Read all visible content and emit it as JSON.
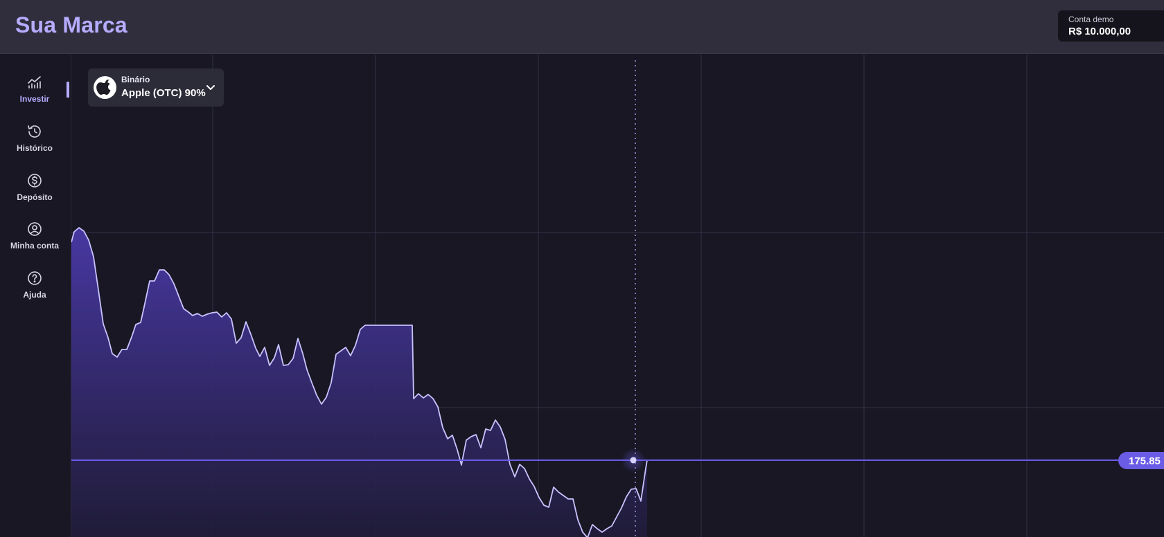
{
  "header": {
    "brand": "Sua Marca",
    "account": {
      "label": "Conta demo",
      "balance": "R$ 10.000,00"
    }
  },
  "sidebar": {
    "items": [
      {
        "label": "Investir",
        "icon": "chart-line-icon",
        "active": true
      },
      {
        "label": "Histórico",
        "icon": "history-icon",
        "active": false
      },
      {
        "label": "Depósito",
        "icon": "dollar-circle-icon",
        "active": false
      },
      {
        "label": "Minha conta",
        "icon": "user-circle-icon",
        "active": false
      },
      {
        "label": "Ajuda",
        "icon": "help-circle-icon",
        "active": false
      }
    ]
  },
  "asset": {
    "type": "Binário",
    "name": "Apple (OTC) 90%",
    "icon": "apple-logo-icon"
  },
  "chart": {
    "current_price": "175.85",
    "colors": {
      "line": "#c9c3ff",
      "fill_top": "#4a39a8",
      "fill_bottom": "#201c3a",
      "price_line": "#6b5ce6",
      "grid": "#34324a"
    }
  }
}
